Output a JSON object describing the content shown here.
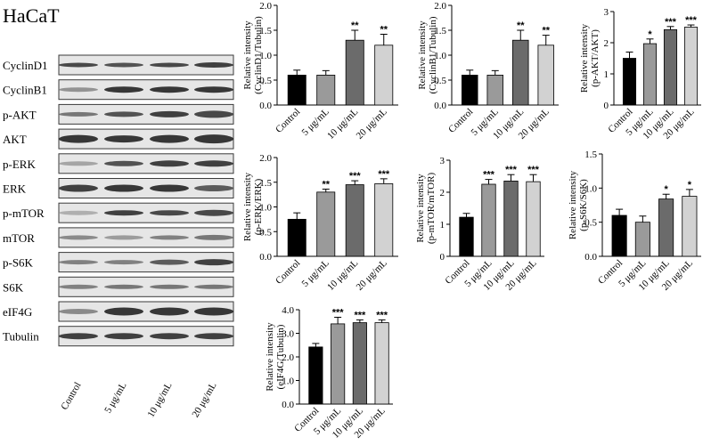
{
  "figure_title": "HaCaT",
  "western_blot": {
    "rows": [
      "CyclinD1",
      "CyclinB1",
      "p-AKT",
      "AKT",
      "p-ERK",
      "ERK",
      "p-mTOR",
      "mTOR",
      "p-S6K",
      "S6K",
      "eIF4G",
      "Tubulin"
    ],
    "lanes": [
      "Control",
      "5 μg/mL",
      "10 μg/mL",
      "20 μg/mL"
    ]
  },
  "colors": {
    "bar_fills": [
      "#000000",
      "#9a9a9a",
      "#6b6b6b",
      "#d2d2d2"
    ],
    "axis": "#000000"
  },
  "chart_data": [
    {
      "type": "bar",
      "categories": [
        "Control",
        "5 μg/mL",
        "10 μg/mL",
        "20 μg/mL"
      ],
      "values": [
        0.6,
        0.6,
        1.3,
        1.2
      ],
      "errors": [
        0.1,
        0.09,
        0.2,
        0.22
      ],
      "significance": [
        "",
        "",
        "**",
        "**"
      ],
      "ylabel": [
        "Relative intensity",
        "(CyclinD1/Tubulin)"
      ],
      "ylim": [
        0,
        2.0
      ],
      "yticks": [
        "0.0",
        "0.5",
        "1.0",
        "1.5",
        "2.0"
      ],
      "title": ""
    },
    {
      "type": "bar",
      "categories": [
        "Control",
        "5 μg/mL",
        "10 μg/mL",
        "20 μg/mL"
      ],
      "values": [
        0.6,
        0.6,
        1.3,
        1.2
      ],
      "errors": [
        0.1,
        0.09,
        0.2,
        0.2
      ],
      "significance": [
        "",
        "",
        "**",
        "**"
      ],
      "ylabel": [
        "Relative intensity",
        "(CyclinB1/Tubulin)"
      ],
      "ylim": [
        0,
        2.0
      ],
      "yticks": [
        "0.0",
        "0.5",
        "1.0",
        "1.5",
        "2.0"
      ],
      "title": ""
    },
    {
      "type": "bar",
      "categories": [
        "Control",
        "5 μg/mL",
        "10 μg/mL",
        "20 μg/mL"
      ],
      "values": [
        1.5,
        1.97,
        2.42,
        2.5
      ],
      "errors": [
        0.2,
        0.15,
        0.1,
        0.07
      ],
      "significance": [
        "",
        "*",
        "***",
        "***"
      ],
      "ylabel": [
        "Relative intensity",
        "(p-AKT/AKT)"
      ],
      "ylim": [
        0,
        3
      ],
      "yticks": [
        "0",
        "1",
        "2",
        "3"
      ],
      "title": ""
    },
    {
      "type": "bar",
      "categories": [
        "Control",
        "5 μg/mL",
        "10 μg/mL",
        "20 μg/mL"
      ],
      "values": [
        0.75,
        1.3,
        1.45,
        1.47
      ],
      "errors": [
        0.13,
        0.06,
        0.08,
        0.1
      ],
      "significance": [
        "",
        "**",
        "***",
        "***"
      ],
      "ylabel": [
        "Relative intensity",
        "(p-ERK/ERK)"
      ],
      "ylim": [
        0,
        2.0
      ],
      "yticks": [
        "0.0",
        "0.5",
        "1.0",
        "1.5",
        "2.0"
      ],
      "title": ""
    },
    {
      "type": "bar",
      "categories": [
        "Control",
        "5 μg/mL",
        "10 μg/mL",
        "20 μg/mL"
      ],
      "values": [
        1.22,
        2.25,
        2.35,
        2.33
      ],
      "errors": [
        0.12,
        0.15,
        0.2,
        0.22
      ],
      "significance": [
        "",
        "***",
        "***",
        "***"
      ],
      "ylabel": [
        "Relative intensity",
        "(p-mTOR/mTOR)"
      ],
      "ylim": [
        0,
        3
      ],
      "yticks": [
        "0",
        "1",
        "2",
        "3"
      ],
      "title": ""
    },
    {
      "type": "bar",
      "categories": [
        "Control",
        "5 μg/mL",
        "10 μg/mL",
        "20 μg/mL"
      ],
      "values": [
        0.6,
        0.5,
        0.84,
        0.88
      ],
      "errors": [
        0.09,
        0.09,
        0.07,
        0.1
      ],
      "significance": [
        "",
        "",
        "*",
        "*"
      ],
      "ylabel": [
        "Relative intensity",
        "(p-S6K/S6K)"
      ],
      "ylim": [
        0,
        1.5
      ],
      "yticks": [
        "0.0",
        "0.5",
        "1.0",
        "1.5"
      ],
      "title": ""
    },
    {
      "type": "bar",
      "categories": [
        "Control",
        "5 μg/mL",
        "10 μg/mL",
        "20 μg/mL"
      ],
      "values": [
        2.42,
        3.4,
        3.45,
        3.45
      ],
      "errors": [
        0.15,
        0.28,
        0.12,
        0.12
      ],
      "significance": [
        "",
        "***",
        "***",
        "***"
      ],
      "ylabel": [
        "Relative intensity",
        "(eIF4G/Tubulin)"
      ],
      "ylim": [
        0,
        4.0
      ],
      "yticks": [
        "0.0",
        "1.0",
        "2.0",
        "3.0",
        "4.0"
      ],
      "title": ""
    }
  ],
  "blot_bands": [
    {
      "row": "CyclinD1",
      "lanes": [
        {
          "i": 0.85,
          "t": 3
        },
        {
          "i": 0.8,
          "t": 3
        },
        {
          "i": 0.85,
          "t": 3
        },
        {
          "i": 0.9,
          "t": 4
        }
      ]
    },
    {
      "row": "CyclinB1",
      "lanes": [
        {
          "i": 0.45,
          "t": 3
        },
        {
          "i": 0.95,
          "t": 5
        },
        {
          "i": 0.95,
          "t": 5
        },
        {
          "i": 0.95,
          "t": 5
        }
      ]
    },
    {
      "row": "p-AKT",
      "lanes": [
        {
          "i": 0.6,
          "t": 3
        },
        {
          "i": 0.8,
          "t": 4
        },
        {
          "i": 0.9,
          "t": 5
        },
        {
          "i": 0.85,
          "t": 6
        }
      ]
    },
    {
      "row": "AKT",
      "lanes": [
        {
          "i": 0.95,
          "t": 7
        },
        {
          "i": 0.95,
          "t": 6
        },
        {
          "i": 0.95,
          "t": 7
        },
        {
          "i": 0.95,
          "t": 8
        }
      ]
    },
    {
      "row": "p-ERK",
      "lanes": [
        {
          "i": 0.35,
          "t": 3
        },
        {
          "i": 0.8,
          "t": 4
        },
        {
          "i": 0.9,
          "t": 5
        },
        {
          "i": 0.9,
          "t": 5
        }
      ]
    },
    {
      "row": "ERK",
      "lanes": [
        {
          "i": 0.9,
          "t": 6
        },
        {
          "i": 0.95,
          "t": 6
        },
        {
          "i": 0.95,
          "t": 6
        },
        {
          "i": 0.75,
          "t": 5
        }
      ]
    },
    {
      "row": "p-mTOR",
      "lanes": [
        {
          "i": 0.3,
          "t": 3
        },
        {
          "i": 0.9,
          "t": 4
        },
        {
          "i": 0.85,
          "t": 4
        },
        {
          "i": 0.85,
          "t": 5
        }
      ]
    },
    {
      "row": "mTOR",
      "lanes": [
        {
          "i": 0.5,
          "t": 3
        },
        {
          "i": 0.4,
          "t": 3
        },
        {
          "i": 0.55,
          "t": 3
        },
        {
          "i": 0.6,
          "t": 4
        }
      ]
    },
    {
      "row": "p-S6K",
      "lanes": [
        {
          "i": 0.55,
          "t": 3
        },
        {
          "i": 0.55,
          "t": 3
        },
        {
          "i": 0.75,
          "t": 4
        },
        {
          "i": 0.9,
          "t": 5
        }
      ]
    },
    {
      "row": "S6K",
      "lanes": [
        {
          "i": 0.55,
          "t": 3
        },
        {
          "i": 0.6,
          "t": 3
        },
        {
          "i": 0.6,
          "t": 3
        },
        {
          "i": 0.6,
          "t": 3
        }
      ]
    },
    {
      "row": "eIF4G",
      "lanes": [
        {
          "i": 0.5,
          "t": 4
        },
        {
          "i": 0.95,
          "t": 7
        },
        {
          "i": 0.95,
          "t": 7
        },
        {
          "i": 0.95,
          "t": 7
        }
      ]
    },
    {
      "row": "Tubulin",
      "lanes": [
        {
          "i": 0.9,
          "t": 5
        },
        {
          "i": 0.9,
          "t": 5
        },
        {
          "i": 0.9,
          "t": 5
        },
        {
          "i": 0.9,
          "t": 5
        }
      ]
    }
  ]
}
